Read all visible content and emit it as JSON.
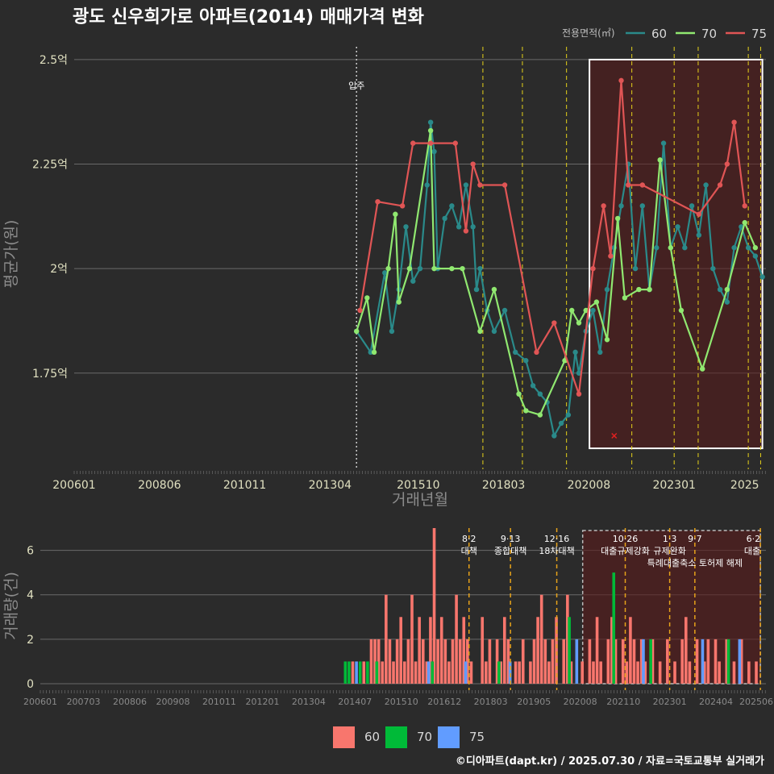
{
  "chart_data": [
    {
      "type": "line",
      "title": "광도 신우희가로 아파트(2014) 매매가격 변화",
      "xlabel": "거래년월",
      "ylabel": "평균가(원)",
      "x_ticks": [
        "200601",
        "200806",
        "201011",
        "201304",
        "201510",
        "201803",
        "202008",
        "202301",
        "2025"
      ],
      "y_ticks": [
        {
          "v": 1.75,
          "label": "1.75억"
        },
        {
          "v": 2.0,
          "label": "2억"
        },
        {
          "v": 2.25,
          "label": "2.25억"
        },
        {
          "v": 2.5,
          "label": "2.5억"
        }
      ],
      "xlim": [
        2006.0,
        2025.6
      ],
      "ylim": [
        1.52,
        2.55
      ],
      "legend_title": "전용면적(㎡)",
      "legend": [
        {
          "name": "60",
          "color": "#2a8a8a"
        },
        {
          "name": "70",
          "color": "#90e870"
        },
        {
          "name": "75",
          "color": "#e05555"
        }
      ],
      "move_in": {
        "x": 2014.0,
        "label": "입주"
      },
      "policy_lines": [
        2017.58,
        2018.7,
        2019.95,
        2021.8,
        2023.0,
        2023.68,
        2025.1,
        2025.45
      ],
      "highlight": {
        "x0": 2020.6,
        "x1": 2025.5,
        "y0": 1.57,
        "y1": 2.5
      },
      "marker_x": {
        "x": 2021.3,
        "y": 1.6
      },
      "series": [
        {
          "name": "60",
          "color": "#2a8a8a",
          "points": [
            [
              2014.0,
              1.85
            ],
            [
              2014.4,
              1.8
            ],
            [
              2014.8,
              1.99
            ],
            [
              2015.0,
              1.85
            ],
            [
              2015.2,
              1.95
            ],
            [
              2015.4,
              2.1
            ],
            [
              2015.6,
              1.97
            ],
            [
              2015.8,
              2.0
            ],
            [
              2016.0,
              2.2
            ],
            [
              2016.1,
              2.35
            ],
            [
              2016.2,
              2.28
            ],
            [
              2016.3,
              2.0
            ],
            [
              2016.5,
              2.12
            ],
            [
              2016.7,
              2.15
            ],
            [
              2016.9,
              2.1
            ],
            [
              2017.1,
              2.2
            ],
            [
              2017.3,
              2.1
            ],
            [
              2017.4,
              1.95
            ],
            [
              2017.5,
              2.0
            ],
            [
              2017.7,
              1.9
            ],
            [
              2017.9,
              1.85
            ],
            [
              2018.2,
              1.9
            ],
            [
              2018.5,
              1.8
            ],
            [
              2018.8,
              1.78
            ],
            [
              2019.0,
              1.72
            ],
            [
              2019.2,
              1.7
            ],
            [
              2019.4,
              1.68
            ],
            [
              2019.6,
              1.6
            ],
            [
              2019.8,
              1.63
            ],
            [
              2020.0,
              1.65
            ],
            [
              2020.2,
              1.8
            ],
            [
              2020.3,
              1.75
            ],
            [
              2020.5,
              1.85
            ],
            [
              2020.7,
              1.9
            ],
            [
              2020.9,
              1.8
            ],
            [
              2021.1,
              1.95
            ],
            [
              2021.3,
              2.05
            ],
            [
              2021.5,
              2.15
            ],
            [
              2021.7,
              2.25
            ],
            [
              2021.9,
              2.0
            ],
            [
              2022.1,
              2.15
            ],
            [
              2022.3,
              1.95
            ],
            [
              2022.5,
              2.05
            ],
            [
              2022.7,
              2.3
            ],
            [
              2022.9,
              2.05
            ],
            [
              2023.1,
              2.1
            ],
            [
              2023.3,
              2.05
            ],
            [
              2023.5,
              2.15
            ],
            [
              2023.7,
              2.08
            ],
            [
              2023.9,
              2.2
            ],
            [
              2024.1,
              2.0
            ],
            [
              2024.3,
              1.95
            ],
            [
              2024.5,
              1.92
            ],
            [
              2024.7,
              2.05
            ],
            [
              2024.9,
              2.1
            ],
            [
              2025.1,
              2.05
            ],
            [
              2025.3,
              2.03
            ],
            [
              2025.5,
              1.98
            ]
          ]
        },
        {
          "name": "70",
          "color": "#90e870",
          "points": [
            [
              2014.0,
              1.85
            ],
            [
              2014.3,
              1.93
            ],
            [
              2014.5,
              1.8
            ],
            [
              2014.9,
              2.0
            ],
            [
              2015.1,
              2.13
            ],
            [
              2015.2,
              1.92
            ],
            [
              2015.5,
              2.0
            ],
            [
              2016.1,
              2.33
            ],
            [
              2016.2,
              2.0
            ],
            [
              2016.7,
              2.0
            ],
            [
              2017.0,
              2.0
            ],
            [
              2017.5,
              1.85
            ],
            [
              2017.9,
              1.95
            ],
            [
              2018.6,
              1.7
            ],
            [
              2018.8,
              1.66
            ],
            [
              2019.2,
              1.65
            ],
            [
              2019.9,
              1.78
            ],
            [
              2020.1,
              1.9
            ],
            [
              2020.3,
              1.87
            ],
            [
              2020.5,
              1.9
            ],
            [
              2020.8,
              1.92
            ],
            [
              2021.1,
              1.83
            ],
            [
              2021.4,
              2.12
            ],
            [
              2021.6,
              1.93
            ],
            [
              2022.0,
              1.95
            ],
            [
              2022.3,
              1.95
            ],
            [
              2022.6,
              2.26
            ],
            [
              2022.9,
              2.05
            ],
            [
              2023.2,
              1.9
            ],
            [
              2023.8,
              1.76
            ],
            [
              2024.5,
              1.95
            ],
            [
              2025.0,
              2.11
            ],
            [
              2025.3,
              2.05
            ]
          ]
        },
        {
          "name": "75",
          "color": "#e05555",
          "points": [
            [
              2014.1,
              1.9
            ],
            [
              2014.6,
              2.16
            ],
            [
              2015.3,
              2.15
            ],
            [
              2015.6,
              2.3
            ],
            [
              2016.1,
              2.3
            ],
            [
              2016.8,
              2.3
            ],
            [
              2017.1,
              2.09
            ],
            [
              2017.3,
              2.25
            ],
            [
              2017.5,
              2.2
            ],
            [
              2018.2,
              2.2
            ],
            [
              2019.1,
              1.8
            ],
            [
              2019.6,
              1.87
            ],
            [
              2020.3,
              1.7
            ],
            [
              2020.7,
              2.0
            ],
            [
              2021.0,
              2.15
            ],
            [
              2021.2,
              2.03
            ],
            [
              2021.5,
              2.45
            ],
            [
              2021.7,
              2.2
            ],
            [
              2022.1,
              2.2
            ],
            [
              2023.7,
              2.13
            ],
            [
              2024.3,
              2.2
            ],
            [
              2024.5,
              2.25
            ],
            [
              2024.7,
              2.35
            ],
            [
              2025.0,
              2.15
            ]
          ]
        }
      ]
    },
    {
      "type": "bar",
      "ylabel": "거래량(건)",
      "y_ticks": [
        0,
        2,
        4,
        6
      ],
      "ylim": [
        0,
        7
      ],
      "xlim": [
        2006.0,
        2025.6
      ],
      "x_ticks": [
        "200601",
        "200703",
        "200806",
        "200908",
        "201011",
        "201201",
        "201304",
        "201407",
        "201510",
        "201612",
        "201803",
        "201905",
        "202008",
        "202110",
        "202301",
        "202404",
        "202506"
      ],
      "legend": [
        {
          "name": "60",
          "color": "#f8766d"
        },
        {
          "name": "70",
          "color": "#00ba38"
        },
        {
          "name": "75",
          "color": "#619cff"
        }
      ],
      "highlight": {
        "x0": 2020.65,
        "x1": 2025.45,
        "y0": 0,
        "y1": 7
      },
      "policies": [
        {
          "x": 2017.58,
          "date": "8·2",
          "name": "대책"
        },
        {
          "x": 2018.7,
          "date": "9·13",
          "name": "종합대책"
        },
        {
          "x": 2019.95,
          "date": "12·16",
          "name": "18차대책"
        },
        {
          "x": 2021.8,
          "date": "10·26",
          "name": "대출규제강화"
        },
        {
          "x": 2023.0,
          "date": "1·3",
          "name": "규제완화"
        },
        {
          "x": 2023.68,
          "date": "9·7",
          "name": "특례대출축소 토허제 해제"
        },
        {
          "x": 2025.45,
          "date": "6·2",
          "name": "대출"
        }
      ],
      "bars_60": [
        [
          2014.4,
          1
        ],
        [
          2014.7,
          1
        ],
        [
          2014.9,
          2
        ],
        [
          2015.0,
          2
        ],
        [
          2015.1,
          2
        ],
        [
          2015.2,
          1
        ],
        [
          2015.3,
          4
        ],
        [
          2015.4,
          2
        ],
        [
          2015.5,
          1
        ],
        [
          2015.6,
          2
        ],
        [
          2015.7,
          3
        ],
        [
          2015.8,
          1
        ],
        [
          2015.9,
          2
        ],
        [
          2016.0,
          4
        ],
        [
          2016.1,
          1
        ],
        [
          2016.2,
          3
        ],
        [
          2016.3,
          2
        ],
        [
          2016.4,
          1
        ],
        [
          2016.5,
          3
        ],
        [
          2016.6,
          7
        ],
        [
          2016.7,
          2
        ],
        [
          2016.8,
          3
        ],
        [
          2016.9,
          2
        ],
        [
          2017.0,
          1
        ],
        [
          2017.1,
          2
        ],
        [
          2017.2,
          4
        ],
        [
          2017.3,
          2
        ],
        [
          2017.4,
          3
        ],
        [
          2017.5,
          2
        ],
        [
          2017.6,
          1
        ],
        [
          2017.9,
          3
        ],
        [
          2018.0,
          1
        ],
        [
          2018.1,
          2
        ],
        [
          2018.3,
          2
        ],
        [
          2018.4,
          1
        ],
        [
          2018.5,
          3
        ],
        [
          2018.6,
          2
        ],
        [
          2018.8,
          1
        ],
        [
          2018.9,
          1
        ],
        [
          2019.0,
          2
        ],
        [
          2019.2,
          1
        ],
        [
          2019.3,
          2
        ],
        [
          2019.4,
          3
        ],
        [
          2019.5,
          4
        ],
        [
          2019.6,
          2
        ],
        [
          2019.7,
          1
        ],
        [
          2019.8,
          2
        ],
        [
          2019.9,
          3
        ],
        [
          2020.1,
          2
        ],
        [
          2020.2,
          4
        ],
        [
          2020.3,
          1
        ],
        [
          2020.6,
          1
        ],
        [
          2020.8,
          2
        ],
        [
          2020.9,
          1
        ],
        [
          2021.0,
          3
        ],
        [
          2021.1,
          1
        ],
        [
          2021.3,
          2
        ],
        [
          2021.4,
          3
        ],
        [
          2021.5,
          2
        ],
        [
          2021.7,
          2
        ],
        [
          2021.8,
          1
        ],
        [
          2021.9,
          3
        ],
        [
          2022.0,
          2
        ],
        [
          2022.1,
          1
        ],
        [
          2022.2,
          2
        ],
        [
          2022.3,
          1
        ],
        [
          2022.5,
          2
        ],
        [
          2022.7,
          1
        ],
        [
          2022.9,
          2
        ],
        [
          2023.1,
          1
        ],
        [
          2023.3,
          2
        ],
        [
          2023.4,
          3
        ],
        [
          2023.5,
          1
        ],
        [
          2023.7,
          2
        ],
        [
          2023.9,
          1
        ],
        [
          2024.0,
          2
        ],
        [
          2024.2,
          2
        ],
        [
          2024.3,
          1
        ],
        [
          2024.5,
          2
        ],
        [
          2024.7,
          1
        ],
        [
          2024.9,
          2
        ],
        [
          2025.1,
          1
        ],
        [
          2025.3,
          1
        ]
      ],
      "bars_70": [
        [
          2014.2,
          1
        ],
        [
          2014.3,
          1
        ],
        [
          2014.6,
          1
        ],
        [
          2014.8,
          1
        ],
        [
          2015.05,
          1
        ],
        [
          2016.55,
          1
        ],
        [
          2018.35,
          1
        ],
        [
          2020.25,
          3
        ],
        [
          2021.45,
          5
        ],
        [
          2022.45,
          2
        ],
        [
          2024.55,
          2
        ]
      ],
      "bars_75": [
        [
          2014.5,
          1
        ],
        [
          2016.45,
          1
        ],
        [
          2017.45,
          1
        ],
        [
          2018.65,
          1
        ],
        [
          2020.45,
          2
        ],
        [
          2022.25,
          2
        ],
        [
          2023.85,
          2
        ],
        [
          2024.85,
          2
        ]
      ]
    }
  ],
  "caption": "©디아파트(dapt.kr) / 2025.07.30 / 자료=국토교통부 실거래가"
}
